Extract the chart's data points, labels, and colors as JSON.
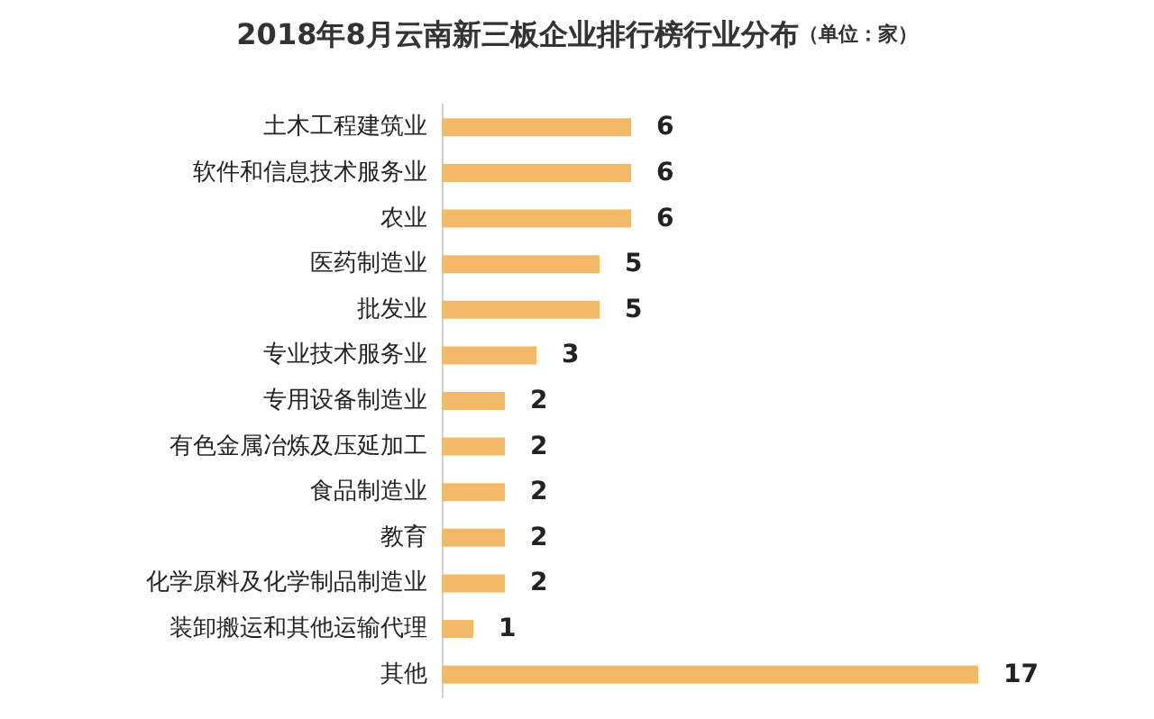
{
  "chart_data": {
    "type": "bar",
    "orientation": "horizontal",
    "title": "2018年8月云南新三板企业排行榜行业分布",
    "subtitle": "（单位：家）",
    "categories": [
      "土木工程建筑业",
      "软件和信息技术服务业",
      "农业",
      "医药制造业",
      "批发业",
      "专业技术服务业",
      "专用设备制造业",
      "有色金属冶炼及压延加工",
      "食品制造业",
      "教育",
      "化学原料及化学制品制造业",
      "装卸搬运和其他运输代理",
      "其他"
    ],
    "values": [
      6,
      6,
      6,
      5,
      5,
      3,
      2,
      2,
      2,
      2,
      2,
      1,
      17
    ],
    "color": "#f2b968",
    "data_labels": true
  }
}
